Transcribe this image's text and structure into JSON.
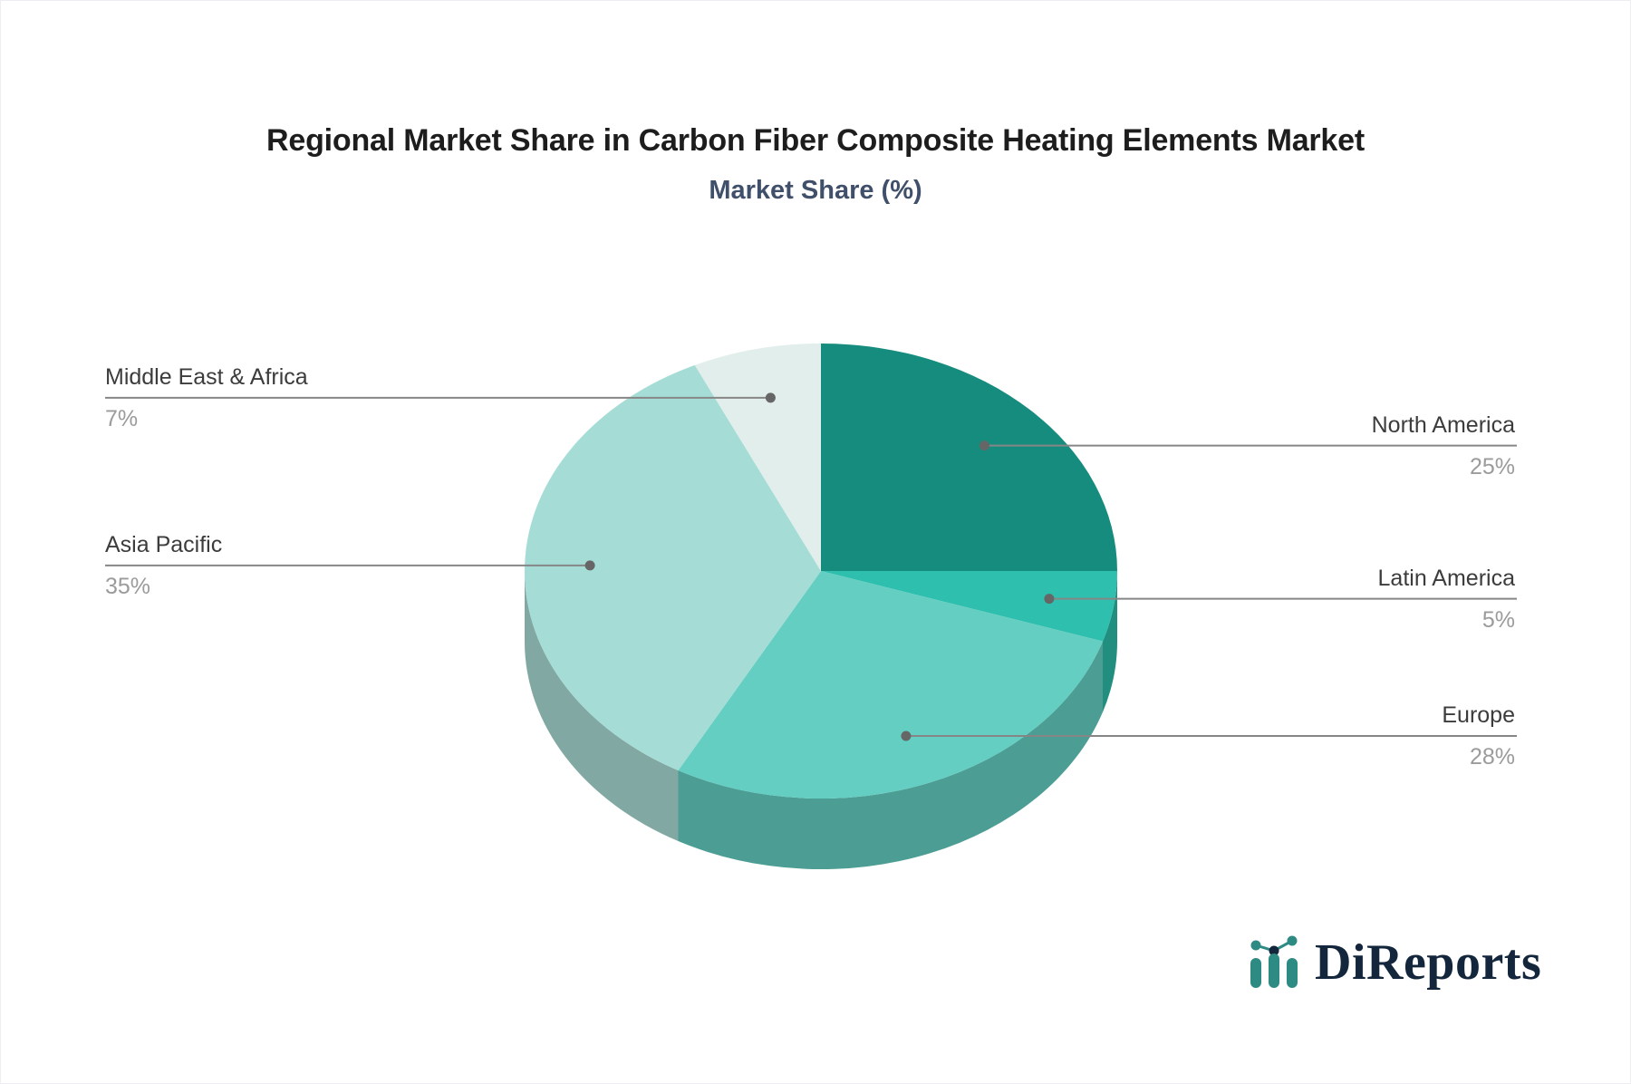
{
  "chart_data": {
    "type": "pie",
    "style": "3d",
    "title": "Regional Market Share in Carbon Fiber Composite Heating Elements Market",
    "subtitle": "Market Share (%)",
    "unit": "%",
    "start_angle_deg": 0,
    "direction": "clockwise",
    "legend_position": "callout-labels",
    "slices": [
      {
        "label": "North America",
        "value": 25,
        "display": "25%",
        "color": "#168c7e",
        "side_color": "#0f7568"
      },
      {
        "label": "Latin America",
        "value": 5,
        "display": "5%",
        "color": "#2fbfae",
        "side_color": "#218e7f"
      },
      {
        "label": "Europe",
        "value": 28,
        "display": "28%",
        "color": "#63cec1",
        "side_color": "#4c9e95"
      },
      {
        "label": "Asia Pacific",
        "value": 35,
        "display": "35%",
        "color": "#a5ddd6",
        "side_color": "#81a8a2"
      },
      {
        "label": "Middle East & Africa",
        "value": 7,
        "display": "7%",
        "color": "#e1eeeb",
        "side_color": "#b7c9c6"
      }
    ],
    "labels": {
      "name_color": "#3c3c3c",
      "percent_color": "#9b9b9b",
      "line_color": "#868686",
      "dot_color": "#666666"
    },
    "colors": {
      "title": "#1d1d1d",
      "subtitle": "#40506a",
      "background": "#ffffff"
    }
  },
  "logo": {
    "text": "DiReports",
    "text_color": "#13263c",
    "bar_color": "#2e8b84",
    "dot_color": "#13263c"
  }
}
